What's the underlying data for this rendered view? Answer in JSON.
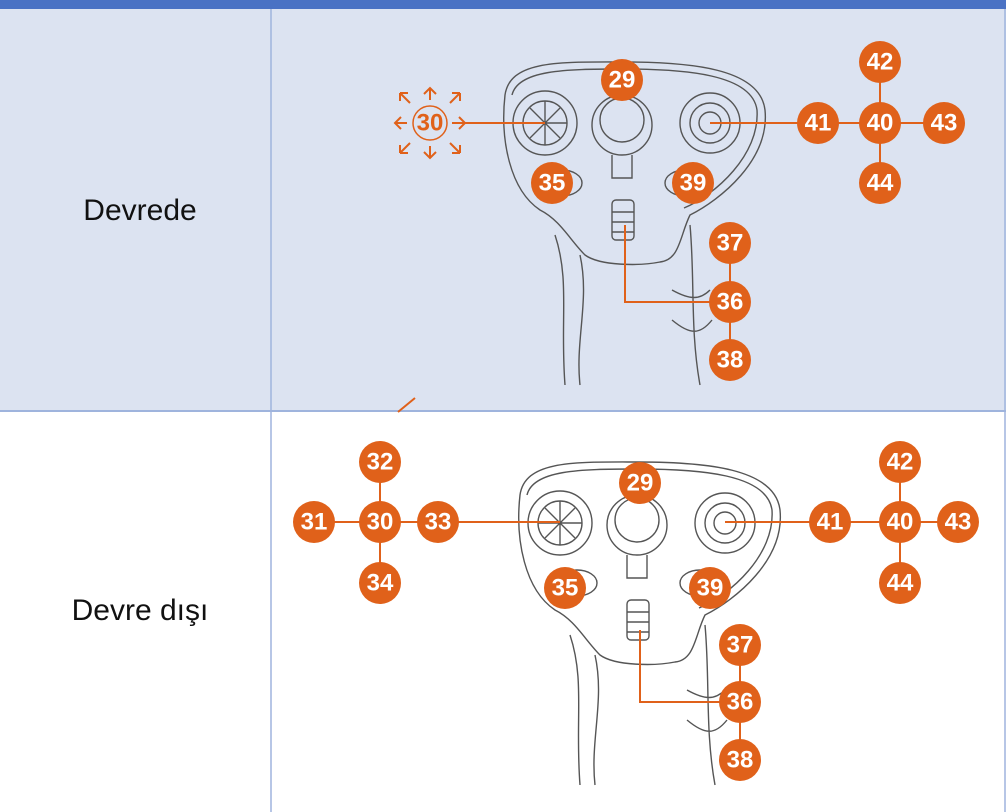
{
  "table": {
    "rows": [
      {
        "label": "Devrede",
        "badges": [
          "29",
          "30",
          "41",
          "40",
          "43",
          "42",
          "44",
          "35",
          "39",
          "37",
          "36",
          "38"
        ]
      },
      {
        "label": "Devre dışı",
        "badges": [
          "32",
          "31",
          "30",
          "33",
          "34",
          "29",
          "41",
          "40",
          "43",
          "42",
          "44",
          "35",
          "39",
          "37",
          "36",
          "38"
        ]
      }
    ]
  }
}
